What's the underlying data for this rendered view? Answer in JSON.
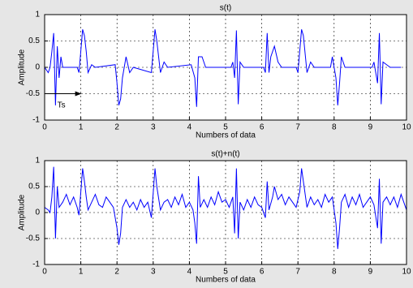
{
  "chart_data": [
    {
      "type": "line",
      "title": "s(t)",
      "xlabel": "Numbers of data",
      "ylabel": "Amplitude",
      "color": "#0000ff",
      "grid": true,
      "xlim": [
        0,
        10
      ],
      "xticks": [
        0,
        1,
        2,
        3,
        4,
        5,
        6,
        7,
        8,
        9,
        10
      ],
      "ylim": [
        -1,
        1
      ],
      "yticks": [
        -1,
        -0.5,
        0,
        0.5,
        1
      ],
      "annotations": [
        {
          "text": "Ts",
          "x": 0.35,
          "y": -0.72
        }
      ],
      "arrow": {
        "x": [
          0,
          1
        ],
        "y": -0.5
      },
      "x": [
        0,
        0.1,
        0.15,
        0.2,
        0.25,
        0.3,
        0.35,
        0.4,
        0.45,
        0.5,
        0.9,
        0.95,
        1.05,
        1.1,
        1.15,
        1.2,
        1.3,
        1.4,
        1.95,
        2.0,
        2.05,
        2.1,
        2.15,
        2.25,
        2.35,
        2.45,
        2.95,
        3.05,
        3.1,
        3.2,
        3.3,
        3.4,
        4.05,
        4.15,
        4.2,
        4.25,
        4.35,
        4.45,
        5.15,
        5.2,
        5.25,
        5.3,
        5.35,
        5.4,
        5.5,
        6.05,
        6.1,
        6.15,
        6.2,
        6.25,
        6.35,
        6.45,
        6.55,
        6.95,
        7.0,
        7.1,
        7.15,
        7.25,
        7.35,
        7.45,
        7.9,
        7.95,
        8.05,
        8.1,
        8.15,
        8.2,
        8.3,
        9.05,
        9.1,
        9.2,
        9.25,
        9.3,
        9.35,
        9.45,
        9.55,
        9.85
      ],
      "values": [
        0,
        -0.1,
        0,
        0.3,
        0.65,
        -0.72,
        0.4,
        -0.2,
        0.2,
        0,
        0,
        -0.1,
        0.72,
        0.6,
        0.3,
        -0.1,
        0.05,
        0,
        0.05,
        -0.3,
        -0.72,
        -0.6,
        -0.2,
        0.2,
        -0.1,
        0,
        -0.1,
        0.72,
        0.5,
        -0.1,
        0.1,
        0,
        0.05,
        -0.2,
        -0.75,
        0.2,
        0.2,
        0,
        0,
        0.1,
        -0.2,
        0.7,
        -0.7,
        0.1,
        0,
        0,
        -0.1,
        0.65,
        -0.1,
        0.2,
        0.4,
        0.1,
        0,
        0,
        -0.1,
        0.72,
        0.6,
        -0.1,
        0.1,
        0,
        0,
        0.2,
        -0.2,
        -0.72,
        -0.3,
        0.2,
        0,
        0,
        0.1,
        -0.3,
        0.65,
        -0.7,
        0.1,
        0.05,
        0,
        0
      ]
    },
    {
      "type": "line",
      "title": "s(t)+n(t)",
      "xlabel": "Numbers of data",
      "ylabel": "Amplitude",
      "color": "#0000ff",
      "grid": true,
      "xlim": [
        0,
        10
      ],
      "xticks": [
        0,
        1,
        2,
        3,
        4,
        5,
        6,
        7,
        8,
        9,
        10
      ],
      "ylim": [
        -1,
        1
      ],
      "yticks": [
        -1,
        -0.5,
        0,
        0.5,
        1
      ],
      "x": [
        0,
        0.1,
        0.15,
        0.2,
        0.25,
        0.3,
        0.35,
        0.4,
        0.5,
        0.6,
        0.7,
        0.8,
        0.9,
        0.95,
        1.05,
        1.1,
        1.15,
        1.2,
        1.3,
        1.4,
        1.5,
        1.6,
        1.7,
        1.8,
        1.9,
        2.0,
        2.05,
        2.1,
        2.15,
        2.25,
        2.35,
        2.45,
        2.55,
        2.65,
        2.75,
        2.85,
        2.95,
        3.05,
        3.1,
        3.2,
        3.3,
        3.4,
        3.5,
        3.6,
        3.7,
        3.8,
        3.9,
        4.0,
        4.1,
        4.15,
        4.2,
        4.25,
        4.3,
        4.4,
        4.5,
        4.6,
        4.7,
        4.8,
        4.9,
        5.0,
        5.1,
        5.2,
        5.25,
        5.3,
        5.35,
        5.4,
        5.5,
        5.6,
        5.7,
        5.8,
        5.9,
        6.0,
        6.1,
        6.15,
        6.2,
        6.3,
        6.35,
        6.45,
        6.55,
        6.65,
        6.75,
        6.85,
        6.95,
        7.05,
        7.1,
        7.15,
        7.25,
        7.35,
        7.45,
        7.55,
        7.65,
        7.75,
        7.85,
        7.95,
        8.05,
        8.1,
        8.15,
        8.2,
        8.3,
        8.4,
        8.5,
        8.6,
        8.7,
        8.8,
        8.9,
        9.0,
        9.1,
        9.2,
        9.25,
        9.3,
        9.35,
        9.45,
        9.55,
        9.65,
        9.75,
        9.85,
        9.95,
        10.0
      ],
      "values": [
        0.1,
        0.05,
        0,
        0.3,
        0.88,
        -0.5,
        0.5,
        0.1,
        0.2,
        0.35,
        0.15,
        0.3,
        0.1,
        -0.05,
        0.85,
        0.6,
        0.3,
        0.05,
        0.2,
        0.35,
        0.15,
        0.1,
        0.3,
        0.2,
        0.1,
        -0.3,
        -0.62,
        -0.4,
        0.1,
        0.25,
        0.1,
        0.2,
        0.05,
        0.25,
        0.1,
        0.2,
        -0.1,
        0.85,
        0.5,
        0.05,
        0.2,
        0.25,
        0.1,
        0.3,
        0.15,
        0.35,
        0.1,
        0.2,
        0.05,
        -0.2,
        -0.6,
        0.7,
        0.1,
        0.25,
        0.1,
        0.3,
        0.15,
        0.4,
        0.2,
        0.25,
        0.1,
        0.3,
        -0.4,
        0.85,
        -0.5,
        0.2,
        0.05,
        0.25,
        0.1,
        0.3,
        0.15,
        0.1,
        -0.1,
        0.6,
        0.05,
        0.3,
        0.5,
        0.25,
        0.35,
        0.15,
        0.3,
        0.2,
        0.1,
        0.4,
        0.85,
        0.6,
        0.1,
        0.3,
        0.15,
        0.25,
        0.1,
        0.35,
        0.2,
        0.3,
        -0.2,
        -0.7,
        -0.3,
        0.2,
        0.35,
        0.1,
        0.3,
        0.15,
        0.35,
        0.1,
        0.2,
        0.3,
        0.15,
        -0.3,
        0.65,
        -0.6,
        0.2,
        0.3,
        0.15,
        0.3,
        0.1,
        0.35,
        0.15,
        0.05
      ]
    }
  ]
}
